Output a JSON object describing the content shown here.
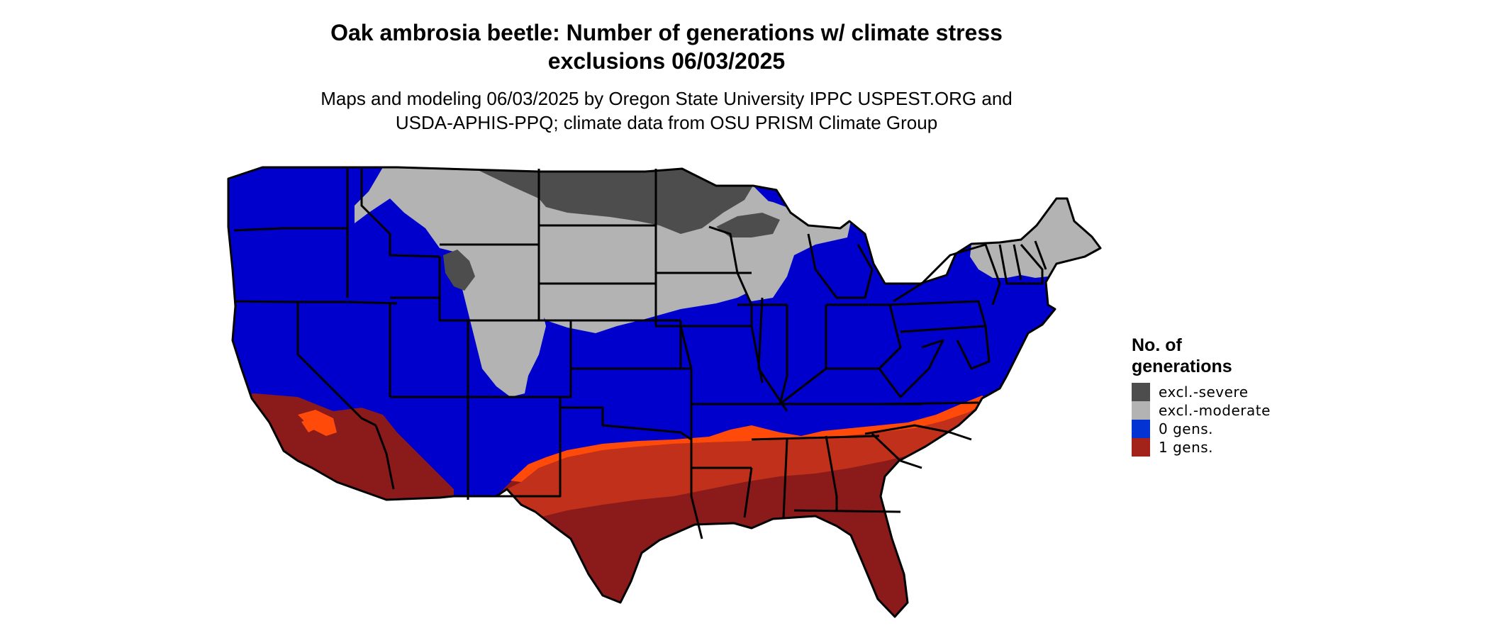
{
  "header": {
    "title_line1": "Oak ambrosia beetle: Number of generations w/ climate stress",
    "title_line2": "exclusions 06/03/2025",
    "subtitle_line1": "Maps and modeling 06/03/2025 by Oregon State University IPPC USPEST.ORG and",
    "subtitle_line2": "USDA-APHIS-PPQ; climate data from OSU PRISM Climate Group"
  },
  "legend": {
    "title_line1": "No. of",
    "title_line2": "generations",
    "items": [
      {
        "label": "excl.-severe",
        "color": "#4d4d4d"
      },
      {
        "label": "excl.-moderate",
        "color": "#b3b3b3"
      },
      {
        "label": "0 gens.",
        "color": "#0433d3"
      },
      {
        "label": "1 gens.",
        "color": "#a3231b"
      }
    ]
  },
  "map": {
    "colors": {
      "severe": "#4d4d4d",
      "moderate": "#b3b3b3",
      "zero": "#0000cc",
      "one_dark": "#8b1a1a",
      "one_mid": "#c0301a",
      "one_bright": "#ff4a0a",
      "border": "#000000"
    }
  }
}
